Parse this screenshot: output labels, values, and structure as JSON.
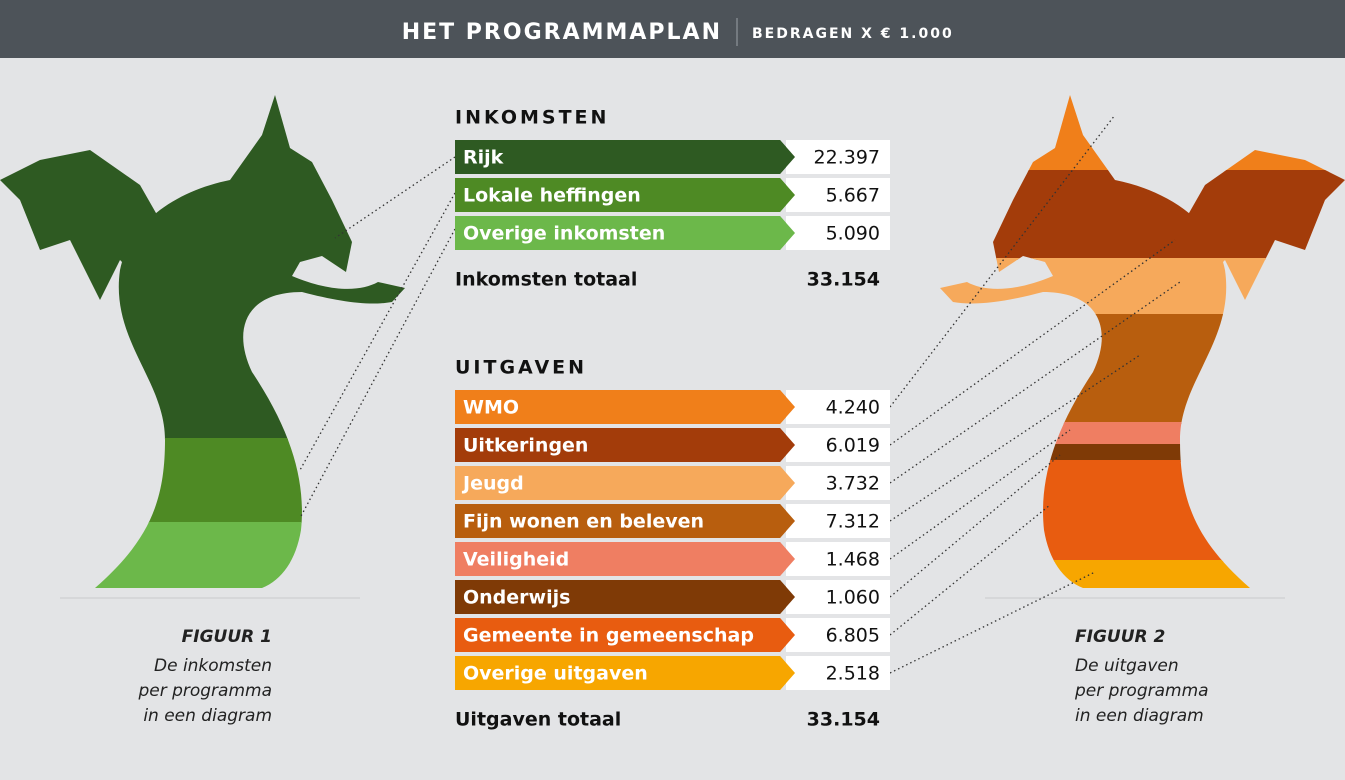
{
  "header": {
    "title": "HET PROGRAMMAPLAN",
    "subtitle": "BEDRAGEN X € 1.000"
  },
  "income": {
    "heading": "INKOMSTEN",
    "rows": [
      {
        "label": "Rijk",
        "value": "22.397"
      },
      {
        "label": "Lokale heffingen",
        "value": "5.667"
      },
      {
        "label": "Overige inkomsten",
        "value": "5.090"
      }
    ],
    "total": {
      "label": "Inkomsten totaal",
      "value": "33.154"
    }
  },
  "expenses": {
    "heading": "UITGAVEN",
    "rows": [
      {
        "label": "WMO",
        "value": "4.240"
      },
      {
        "label": "Uitkeringen",
        "value": "6.019"
      },
      {
        "label": "Jeugd",
        "value": "3.732"
      },
      {
        "label": "Fijn wonen en beleven",
        "value": "7.312"
      },
      {
        "label": "Veiligheid",
        "value": "1.468"
      },
      {
        "label": "Onderwijs",
        "value": "1.060"
      },
      {
        "label": "Gemeente in gemeenschap",
        "value": "6.805"
      },
      {
        "label": "Overige uitgaven",
        "value": "2.518"
      }
    ],
    "total": {
      "label": "Uitgaven totaal",
      "value": "33.154"
    }
  },
  "figures": [
    {
      "label": "FIGUUR 1",
      "caption": [
        "De inkomsten",
        "per programma",
        "in een diagram"
      ]
    },
    {
      "label": "FIGUUR 2",
      "caption": [
        "De uitgaven",
        "per programma",
        "in een diagram"
      ]
    }
  ]
}
